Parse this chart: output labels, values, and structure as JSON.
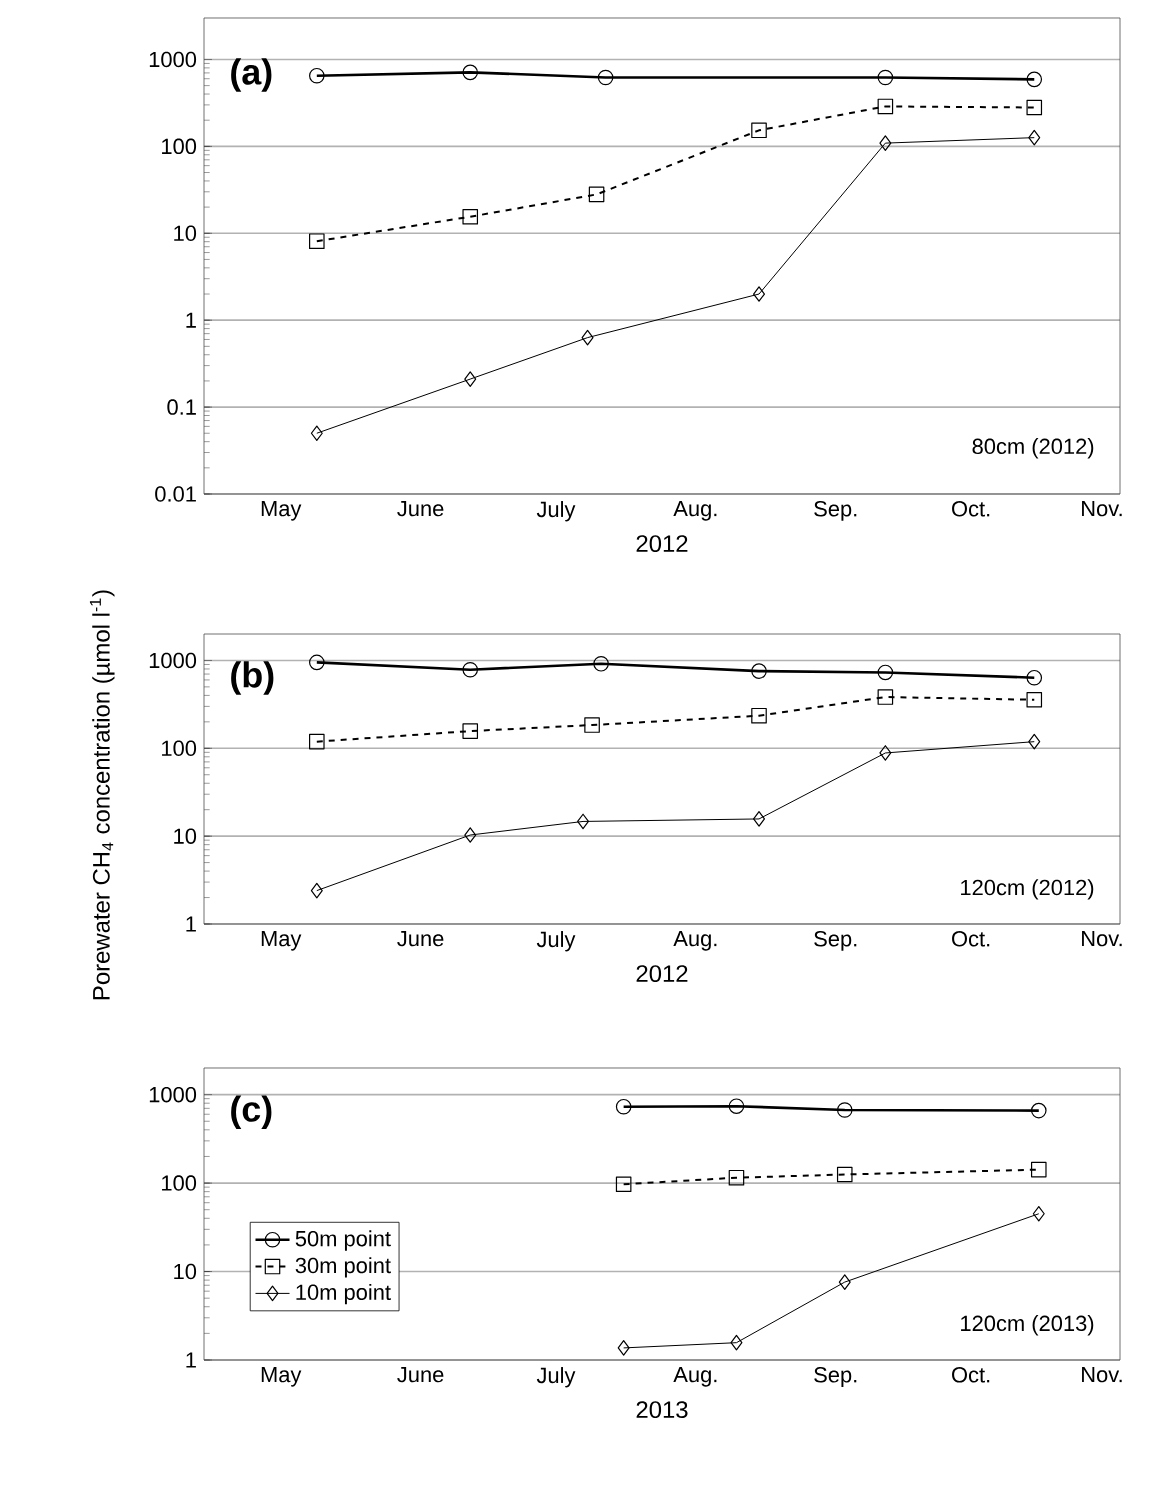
{
  "chart_data": [
    {
      "type": "line",
      "xlabel": "2012",
      "annotations": [
        "(a)",
        "80cm (2012)"
      ],
      "log": "y",
      "grid": "y",
      "xlim": [
        "2012-05-01",
        "2012-11-20"
      ],
      "ylim": [
        0.01,
        3000
      ],
      "yticks": [
        0.01,
        0.1,
        1,
        10,
        100,
        1000
      ],
      "xticks": [
        {
          "value": "2012-05-01",
          "label": null
        },
        {
          "value": "2012-06-01",
          "label": null
        },
        {
          "value": "2012-07-01",
          "label": null
        },
        {
          "value": "2012-08-01",
          "label": null
        },
        {
          "value": "2012-09-01",
          "label": null
        },
        {
          "value": "2012-10-01",
          "label": null
        },
        {
          "value": "2012-11-01",
          "label": null
        },
        {
          "value": "2012-05-18",
          "label": "May"
        },
        {
          "value": "2012-06-18",
          "label": "June"
        },
        {
          "value": "2012-07-18",
          "label": "July"
        },
        {
          "value": "2012-08-18",
          "label": "Aug."
        },
        {
          "value": "2012-09-18",
          "label": "Sep."
        },
        {
          "value": "2012-10-18",
          "label": "Oct."
        },
        {
          "value": "2012-11-16",
          "label": "Nov."
        }
      ],
      "series": [
        {
          "color": "#000000",
          "marker": "circle",
          "line_style": "solid",
          "x": [
            "2012-05-26",
            "2012-06-29",
            "2012-07-29",
            "2012-09-29",
            "2012-11-01"
          ],
          "values": [
            650,
            710,
            620,
            620,
            590
          ]
        },
        {
          "color": "#000000",
          "marker": "square",
          "line_style": "dashed",
          "x": [
            "2012-05-26",
            "2012-06-29",
            "2012-07-27",
            "2012-09-01",
            "2012-09-29",
            "2012-11-01"
          ],
          "values": [
            8.1,
            15.5,
            28,
            153,
            288,
            280
          ]
        },
        {
          "color": "#000000",
          "marker": "diamond",
          "line_style": "solid",
          "x": [
            "2012-05-26",
            "2012-06-29",
            "2012-07-25",
            "2012-09-01",
            "2012-09-29",
            "2012-11-01"
          ],
          "values": [
            0.05,
            0.21,
            0.63,
            2.0,
            109,
            126
          ]
        }
      ]
    },
    {
      "type": "line",
      "xlabel": "2012",
      "ylabel": "Porewater CH$_{4}$ concentration (µmol l$^{-1}$)",
      "annotations": [
        "(b)",
        "120cm (2012)"
      ],
      "log": "y",
      "grid": "y",
      "xlim": [
        "2012-05-01",
        "2012-11-20"
      ],
      "ylim": [
        1,
        2000
      ],
      "yticks": [
        1,
        10,
        100,
        1000
      ],
      "xticks": [
        {
          "value": "2012-05-01",
          "label": null
        },
        {
          "value": "2012-06-01",
          "label": null
        },
        {
          "value": "2012-07-01",
          "label": null
        },
        {
          "value": "2012-08-01",
          "label": null
        },
        {
          "value": "2012-09-01",
          "label": null
        },
        {
          "value": "2012-10-01",
          "label": null
        },
        {
          "value": "2012-11-01",
          "label": null
        },
        {
          "value": "2012-05-18",
          "label": "May"
        },
        {
          "value": "2012-06-18",
          "label": "June"
        },
        {
          "value": "2012-07-18",
          "label": "July"
        },
        {
          "value": "2012-08-18",
          "label": "Aug."
        },
        {
          "value": "2012-09-18",
          "label": "Sep."
        },
        {
          "value": "2012-10-18",
          "label": "Oct."
        },
        {
          "value": "2012-11-16",
          "label": "Nov."
        }
      ],
      "series": [
        {
          "color": "#000000",
          "marker": "circle",
          "line_style": "solid",
          "x": [
            "2012-05-26",
            "2012-06-29",
            "2012-07-28",
            "2012-09-01",
            "2012-09-29",
            "2012-11-01"
          ],
          "values": [
            950,
            784,
            916,
            756,
            730,
            636
          ]
        },
        {
          "color": "#000000",
          "marker": "square",
          "line_style": "dashed",
          "x": [
            "2012-05-26",
            "2012-06-29",
            "2012-07-26",
            "2012-09-01",
            "2012-09-29",
            "2012-11-01"
          ],
          "values": [
            119,
            157,
            184,
            235,
            383,
            357
          ]
        },
        {
          "color": "#000000",
          "marker": "diamond",
          "line_style": "solid",
          "x": [
            "2012-05-26",
            "2012-06-29",
            "2012-07-24",
            "2012-09-01",
            "2012-09-29",
            "2012-11-01"
          ],
          "values": [
            2.4,
            10.3,
            14.7,
            15.7,
            88.5,
            119
          ]
        }
      ]
    },
    {
      "type": "line",
      "xlabel": "2013",
      "annotations": [
        "(c)",
        "120cm (2013)"
      ],
      "log": "y",
      "grid": "y",
      "legend": "left",
      "xlim": [
        "2013-05-01",
        "2013-11-20"
      ],
      "ylim": [
        1,
        2000
      ],
      "yticks": [
        1,
        10,
        100,
        1000
      ],
      "xticks": [
        {
          "value": "2013-05-01",
          "label": null
        },
        {
          "value": "2013-06-01",
          "label": null
        },
        {
          "value": "2013-07-01",
          "label": null
        },
        {
          "value": "2013-08-01",
          "label": null
        },
        {
          "value": "2013-09-01",
          "label": null
        },
        {
          "value": "2013-10-01",
          "label": null
        },
        {
          "value": "2013-11-01",
          "label": null
        },
        {
          "value": "2013-05-18",
          "label": "May"
        },
        {
          "value": "2013-06-18",
          "label": "June"
        },
        {
          "value": "2013-07-18",
          "label": "July"
        },
        {
          "value": "2013-08-18",
          "label": "Aug."
        },
        {
          "value": "2013-09-18",
          "label": "Sep."
        },
        {
          "value": "2013-10-18",
          "label": "Oct."
        },
        {
          "value": "2013-11-16",
          "label": "Nov."
        }
      ],
      "series": [
        {
          "name": "50m point",
          "color": "#000000",
          "marker": "circle",
          "line_style": "solid",
          "x": [
            "2013-08-02",
            "2013-08-27",
            "2013-09-20",
            "2013-11-02"
          ],
          "values": [
            730,
            740,
            670,
            660
          ]
        },
        {
          "name": "30m point",
          "color": "#000000",
          "marker": "square",
          "line_style": "dashed",
          "x": [
            "2013-08-02",
            "2013-08-27",
            "2013-09-20",
            "2013-11-02"
          ],
          "values": [
            97,
            115,
            125,
            142
          ]
        },
        {
          "name": "10m point",
          "color": "#000000",
          "marker": "diamond",
          "line_style": "solid",
          "x": [
            "2013-08-02",
            "2013-08-27",
            "2013-09-20",
            "2013-11-02"
          ],
          "values": [
            1.37,
            1.57,
            7.6,
            45
          ]
        }
      ]
    }
  ]
}
